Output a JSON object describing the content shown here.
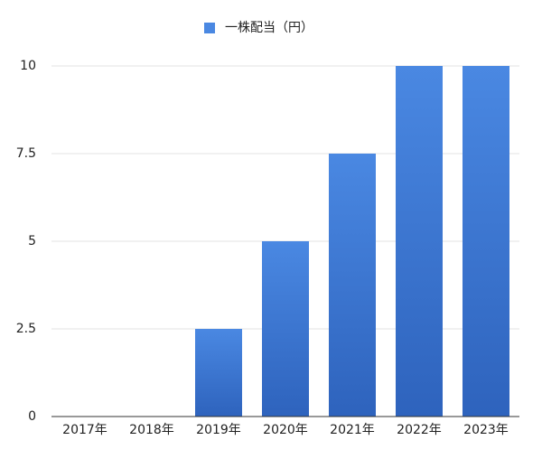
{
  "chart_data": {
    "type": "bar",
    "categories": [
      "2017年",
      "2018年",
      "2019年",
      "2020年",
      "2021年",
      "2022年",
      "2023年"
    ],
    "series": [
      {
        "name": "一株配当（円）",
        "color": "#4a88e2",
        "values": [
          0,
          0,
          2.5,
          5,
          7.5,
          10,
          10
        ]
      }
    ],
    "ylim": [
      0,
      10
    ],
    "yticks": [
      0,
      2.5,
      5,
      7.5,
      10
    ],
    "grid": true,
    "legend": "top"
  }
}
